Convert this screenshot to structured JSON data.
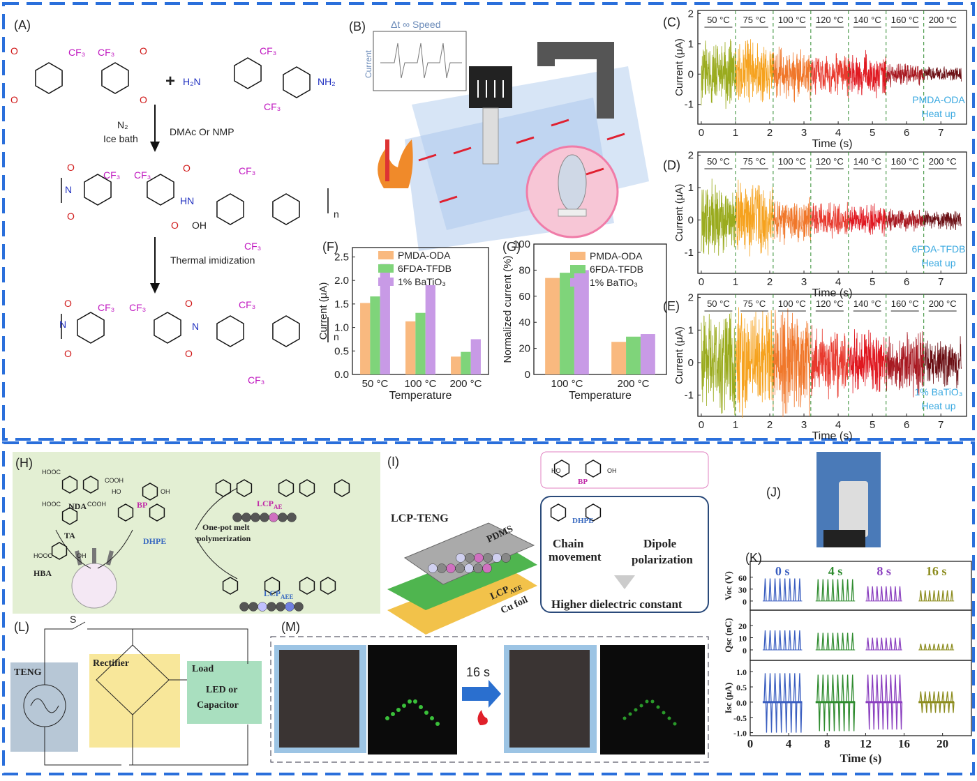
{
  "panels": {
    "A": {
      "label": "(A)",
      "plus": "+",
      "cf3": "CF₃",
      "h2n": "H₂N",
      "nh2": "NH₂",
      "o": "O",
      "n_atom": "N",
      "hn": "HN",
      "oh": "OH",
      "sub_n": "n",
      "reagent": "N₂",
      "condition": "Ice bath",
      "solvent": "DMAc Or NMP",
      "step2": "Thermal imidization"
    },
    "B": {
      "label": "(B)",
      "inset_title": "Δt ∞ Speed",
      "inset_axis": "Current"
    },
    "H": {
      "label": "(H)",
      "nda": "NDA",
      "bp": "BP",
      "ta": "TA",
      "hba": "HBA",
      "dhpe": "DHPE",
      "cooh": "COOH",
      "hooc": "HOOC",
      "ho": "HO",
      "oh": "OH",
      "process": [
        "One-pot melt",
        "polymerization"
      ],
      "lcp": "LCP",
      "ae": "AE",
      "aee": "AEE"
    },
    "I": {
      "label": "(I)",
      "device": "LCP-TENG",
      "pdms": "PDMS",
      "lcp": "LCP",
      "aee": "AEE",
      "cu": "Cu foil",
      "bp": "BP",
      "dhpe": "DHPE",
      "ho": "HO",
      "oh": "OH",
      "mech1": [
        "Chain",
        "movement"
      ],
      "mech2": [
        "Dipole",
        "polarization"
      ],
      "result": "Higher dielectric constant"
    },
    "J": {
      "label": "(J)"
    },
    "K": {
      "label": "(K)"
    },
    "L": {
      "label": "(L)",
      "switch": "S",
      "source": "TENG",
      "rectifier": "Rectifier",
      "load": "Load",
      "load_type": [
        "LED or",
        "Capacitor"
      ]
    },
    "M": {
      "label": "(M)",
      "time": "16 s"
    }
  },
  "chart_data": [
    {
      "type": "bar",
      "label": "(F)",
      "xlabel": "Temperature",
      "ylabel": "Current (μA)",
      "categories": [
        "50 °C",
        "100 °C",
        "200 °C"
      ],
      "series": [
        {
          "name": "PMDA-ODA",
          "color": "#f9b97f",
          "values": [
            1.52,
            1.13,
            0.38
          ]
        },
        {
          "name": "6FDA-TFDB",
          "color": "#7fd47a",
          "values": [
            1.66,
            1.31,
            0.48
          ]
        },
        {
          "name": "1% BaTiO₃",
          "color": "#c89ae6",
          "values": [
            2.35,
            1.9,
            0.75
          ]
        }
      ],
      "ylim": [
        0,
        2.7
      ],
      "yticks": [
        {
          "value": 0,
          "label": "0.0"
        },
        0.5,
        {
          "value": 1,
          "label": "1.0"
        },
        1.5,
        {
          "value": 2,
          "label": "2.0"
        },
        2.5
      ]
    },
    {
      "type": "bar",
      "label": "(G)",
      "xlabel": "Temperature",
      "ylabel": "Normalized current (%)",
      "categories": [
        "100 °C",
        "200 °C"
      ],
      "series": [
        {
          "name": "PMDA-ODA",
          "color": "#f9b97f",
          "values": [
            74,
            25
          ]
        },
        {
          "name": "6FDA-TFDB",
          "color": "#7fd47a",
          "values": [
            78,
            29
          ]
        },
        {
          "name": "1% BaTiO₃",
          "color": "#c89ae6",
          "values": [
            80,
            31
          ]
        }
      ],
      "ylim": [
        0,
        100
      ],
      "yticks": [
        0,
        20,
        40,
        60,
        80,
        100
      ]
    },
    {
      "type": "noise",
      "label": "(C)",
      "xlabel": "Time (s)",
      "ylabel": "Current (μA)",
      "note": [
        "PMDA-ODA",
        "Heat up"
      ],
      "segments": [
        "50 °C",
        "75 °C",
        "100 °C",
        "120 °C",
        "140 °C",
        "160 °C",
        "200 °C"
      ],
      "bounds": [
        0,
        1,
        2.1,
        3.2,
        4.3,
        5.4,
        6.5,
        7.6
      ],
      "amplitudes": [
        1.3,
        1.25,
        1.0,
        0.85,
        0.85,
        0.45,
        0.3
      ],
      "colors": [
        "#9aab1e",
        "#f6a21e",
        "#f0772a",
        "#e83a2e",
        "#e01820",
        "#a81a22",
        "#6b0f14"
      ],
      "xlim": [
        -0.1,
        7.75
      ],
      "ylim": [
        -1.65,
        2.1
      ],
      "xticks": [
        0,
        1,
        2,
        3,
        4,
        5,
        6,
        7
      ],
      "yticks": [
        -1,
        0,
        1,
        2
      ]
    },
    {
      "type": "noise",
      "label": "(D)",
      "xlabel": "Time (s)",
      "ylabel": "Current (μA)",
      "note": [
        "6FDA-TFDB",
        "Heat up"
      ],
      "segments": [
        "50 °C",
        "75 °C",
        "100 °C",
        "120 °C",
        "140 °C",
        "160 °C",
        "200 °C"
      ],
      "bounds": [
        0,
        1,
        2.1,
        3.2,
        4.3,
        5.4,
        6.5,
        7.6
      ],
      "amplitudes": [
        1.3,
        1.3,
        0.8,
        0.6,
        0.6,
        0.4,
        0.35
      ],
      "colors": [
        "#9aab1e",
        "#f6a21e",
        "#f0772a",
        "#e83a2e",
        "#e01820",
        "#a81a22",
        "#6b0f14"
      ],
      "xlim": [
        -0.1,
        7.75
      ],
      "ylim": [
        -1.65,
        2.1
      ],
      "xticks": [
        0,
        1,
        2,
        3,
        4,
        5,
        6,
        7
      ],
      "yticks": [
        -1,
        0,
        1,
        2
      ]
    },
    {
      "type": "noise",
      "label": "(E)",
      "xlabel": "Time (s)",
      "ylabel": "Current (μA)",
      "note": [
        "1% BaTiO₃",
        "Heat up"
      ],
      "segments": [
        "50 °C",
        "75 °C",
        "100 °C",
        "120 °C",
        "140 °C",
        "160 °C",
        "200 °C"
      ],
      "bounds": [
        0,
        1,
        2.1,
        3.2,
        4.3,
        5.4,
        6.5,
        7.6
      ],
      "amplitudes": [
        1.9,
        1.9,
        1.9,
        1.2,
        1.1,
        1.1,
        0.85
      ],
      "colors": [
        "#9aab1e",
        "#f6a21e",
        "#f0772a",
        "#e83a2e",
        "#e01820",
        "#a81a22",
        "#6b0f14"
      ],
      "xlim": [
        -0.1,
        7.75
      ],
      "ylim": [
        -1.65,
        2.1
      ],
      "xticks": [
        0,
        1,
        2,
        3,
        4,
        5,
        6,
        7
      ],
      "yticks": [
        -1,
        0,
        1,
        2
      ]
    },
    {
      "type": "pulse",
      "ylabel": "Voc (V)",
      "groups": [
        "0 s",
        "4 s",
        "8 s",
        "16 s"
      ],
      "colors": [
        "#3a5ec0",
        "#2e8b2e",
        "#8a3fbf",
        "#8c8c1e"
      ],
      "group_x": [
        [
          1.3,
          5.4
        ],
        [
          6.8,
          10.9
        ],
        [
          12,
          15.8
        ],
        [
          17.5,
          21.2
        ]
      ],
      "values": [
        57,
        55,
        37,
        27
      ],
      "xlim": [
        0,
        23
      ],
      "ylim": [
        -23,
        100
      ],
      "yticks": [
        0,
        30,
        60
      ]
    },
    {
      "type": "pulse",
      "ylabel": "Qsc (nC)",
      "values": [
        16,
        14,
        10,
        5
      ],
      "xlim": [
        0,
        23
      ],
      "ylim": [
        -8.6,
        32.6
      ],
      "yticks": [
        0,
        10,
        20
      ]
    },
    {
      "type": "pulse",
      "ylabel": "Isc (μA)",
      "xlabel": "Time (s)",
      "values": [
        0.95,
        0.9,
        0.9,
        0.35
      ],
      "negative": [
        -1.0,
        -0.95,
        -0.9,
        -0.35
      ],
      "xlim": [
        0,
        23
      ],
      "ylim": [
        -1.1,
        1.37
      ],
      "xticks": [
        0,
        4,
        8,
        12,
        16,
        20
      ],
      "yticks": [
        {
          "value": -1,
          "label": "-1.0"
        },
        -0.5,
        {
          "value": 0,
          "label": "0.0"
        },
        0.5,
        {
          "value": 1,
          "label": "1.0"
        }
      ]
    }
  ]
}
